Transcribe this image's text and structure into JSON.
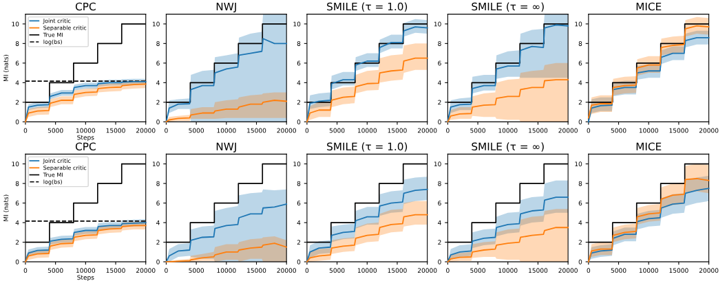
{
  "chart_data": [
    {
      "type": "line",
      "title": "CPC",
      "xlabel": "Steps",
      "ylabel": "MI (nats)",
      "legend": "top left",
      "xlim": [
        0,
        20000
      ],
      "ylim": [
        0,
        11
      ],
      "xticks": [
        0,
        5000,
        10000,
        15000,
        20000
      ],
      "yticks": [
        0,
        2,
        4,
        6,
        8,
        10
      ],
      "x": [
        0,
        500,
        2000,
        3900,
        4100,
        6000,
        7900,
        8100,
        10000,
        11900,
        12100,
        14000,
        15900,
        16100,
        18000,
        20000
      ],
      "series": [
        {
          "name": "Joint critic",
          "color": "#1f77b4",
          "values": [
            0,
            1.5,
            1.7,
            1.75,
            2.6,
            2.95,
            2.95,
            3.5,
            3.7,
            3.7,
            3.9,
            4.0,
            4.0,
            4.05,
            4.1,
            4.1
          ],
          "lower": [
            0,
            1.2,
            1.4,
            1.45,
            2.3,
            2.65,
            2.65,
            3.2,
            3.4,
            3.4,
            3.6,
            3.7,
            3.7,
            3.75,
            3.8,
            3.8
          ],
          "upper": [
            0.3,
            1.8,
            2.0,
            2.05,
            2.9,
            3.25,
            3.25,
            3.8,
            4.0,
            4.0,
            4.2,
            4.3,
            4.3,
            4.35,
            4.4,
            4.4
          ]
        },
        {
          "name": "Separable critic",
          "color": "#ff7f0e",
          "values": [
            0,
            0.9,
            1.1,
            1.15,
            1.9,
            2.2,
            2.2,
            2.8,
            3.0,
            3.05,
            3.4,
            3.5,
            3.55,
            3.7,
            3.8,
            3.85
          ],
          "lower": [
            0,
            0.5,
            0.7,
            0.75,
            1.5,
            1.8,
            1.8,
            2.4,
            2.6,
            2.65,
            3.0,
            3.1,
            3.15,
            3.3,
            3.4,
            3.45
          ],
          "upper": [
            0.4,
            1.3,
            1.5,
            1.55,
            2.3,
            2.6,
            2.6,
            3.2,
            3.4,
            3.45,
            3.8,
            3.9,
            3.95,
            4.1,
            4.2,
            4.25
          ]
        },
        {
          "name": "True MI",
          "type": "step",
          "color": "#000000",
          "x": [
            0,
            4000,
            8000,
            12000,
            16000,
            20000
          ],
          "values": [
            2,
            4,
            6,
            8,
            10,
            10
          ]
        }
      ],
      "ref_lines": [
        {
          "axis": "y",
          "value": 4.16,
          "label": "log(bs)",
          "color": "#000000",
          "line_style": "dashed"
        }
      ]
    },
    {
      "type": "line",
      "title": "NWJ",
      "xlim": [
        0,
        20000
      ],
      "ylim": [
        0,
        11
      ],
      "xticks": [
        0,
        5000,
        10000,
        15000,
        20000
      ],
      "yticks": [
        0,
        2,
        4,
        6,
        8,
        10
      ],
      "x": [
        0,
        500,
        2000,
        3900,
        4100,
        6000,
        7900,
        8100,
        10000,
        11900,
        12100,
        14000,
        15900,
        16100,
        18000,
        20000
      ],
      "series": [
        {
          "color": "#1f77b4",
          "values": [
            0,
            1.4,
            1.8,
            1.85,
            3.3,
            3.7,
            3.7,
            5.0,
            5.4,
            5.6,
            6.8,
            7.0,
            7.2,
            8.5,
            8.0,
            8.0
          ],
          "lower": [
            0,
            0.9,
            1.3,
            1.3,
            0,
            0,
            0,
            0,
            0,
            0,
            0,
            0,
            0,
            0,
            0,
            0
          ],
          "upper": [
            0,
            2.2,
            2.3,
            2.4,
            4.8,
            5.2,
            5.3,
            6.6,
            6.8,
            7.0,
            8.6,
            9.0,
            9.2,
            11,
            11,
            11
          ]
        },
        {
          "color": "#ff7f0e",
          "values": [
            0,
            0.2,
            0.35,
            0.4,
            0.7,
            0.9,
            0.9,
            1.1,
            1.3,
            1.3,
            1.5,
            1.8,
            1.8,
            2.0,
            2.2,
            2.1
          ],
          "lower": [
            0,
            0,
            0.1,
            0.1,
            0.3,
            0.3,
            0.3,
            0.3,
            0.4,
            0.4,
            0.4,
            0.4,
            0.4,
            0.4,
            0.4,
            0.4
          ],
          "upper": [
            0,
            0.5,
            0.6,
            0.7,
            1.3,
            1.5,
            1.5,
            2.0,
            2.2,
            2.3,
            2.5,
            2.7,
            2.8,
            2.9,
            3.0,
            3.0
          ]
        },
        {
          "type": "step",
          "color": "#000000",
          "x": [
            0,
            4000,
            8000,
            12000,
            16000,
            20000
          ],
          "values": [
            2,
            4,
            6,
            8,
            10,
            10
          ]
        }
      ]
    },
    {
      "type": "line",
      "title": "SMILE (τ = 1.0)",
      "xlim": [
        0,
        20000
      ],
      "ylim": [
        0,
        11
      ],
      "xticks": [
        0,
        5000,
        10000,
        15000,
        20000
      ],
      "yticks": [
        0,
        2,
        4,
        6,
        8,
        10
      ],
      "x": [
        0,
        500,
        2000,
        3900,
        4100,
        6000,
        7900,
        8100,
        10000,
        11900,
        12100,
        14000,
        15900,
        16100,
        18000,
        20000
      ],
      "series": [
        {
          "color": "#1f77b4",
          "values": [
            0,
            1.9,
            2.1,
            2.2,
            3.9,
            4.3,
            4.3,
            5.8,
            6.2,
            6.2,
            7.6,
            8.1,
            8.1,
            9.3,
            9.7,
            9.6
          ],
          "lower": [
            0,
            1.3,
            1.5,
            1.6,
            3.3,
            3.7,
            3.7,
            5.2,
            5.6,
            5.6,
            7.0,
            7.5,
            7.5,
            8.7,
            9.1,
            9.0
          ],
          "upper": [
            0,
            2.7,
            2.9,
            3.0,
            4.7,
            5.1,
            5.1,
            6.6,
            7.0,
            7.0,
            8.4,
            8.9,
            8.9,
            10.1,
            10.5,
            10.4
          ]
        },
        {
          "color": "#ff7f0e",
          "values": [
            0,
            0.9,
            1.2,
            1.2,
            2.2,
            2.5,
            2.6,
            3.6,
            3.9,
            3.95,
            5.0,
            5.2,
            5.3,
            6.2,
            6.5,
            6.5
          ],
          "lower": [
            0,
            0.2,
            0.5,
            0.5,
            1.5,
            1.8,
            1.9,
            2.9,
            3.2,
            3.25,
            4.0,
            4.2,
            4.3,
            5.0,
            5.3,
            5.3
          ],
          "upper": [
            0,
            1.6,
            2.0,
            2.0,
            3.2,
            3.5,
            3.6,
            4.8,
            5.2,
            5.3,
            6.5,
            6.8,
            6.9,
            7.8,
            8.0,
            8.0
          ]
        },
        {
          "type": "step",
          "color": "#000000",
          "x": [
            0,
            4000,
            8000,
            12000,
            16000,
            20000
          ],
          "values": [
            2,
            4,
            6,
            8,
            10,
            10
          ]
        }
      ]
    },
    {
      "type": "line",
      "title": "SMILE (τ = ∞)",
      "xlim": [
        0,
        20000
      ],
      "ylim": [
        0,
        11
      ],
      "xticks": [
        0,
        5000,
        10000,
        15000,
        20000
      ],
      "yticks": [
        0,
        2,
        4,
        6,
        8,
        10
      ],
      "x": [
        0,
        500,
        2000,
        3900,
        4100,
        6000,
        7900,
        8100,
        10000,
        11900,
        12100,
        14000,
        15900,
        16100,
        18000,
        20000
      ],
      "series": [
        {
          "color": "#1f77b4",
          "values": [
            0,
            1.5,
            1.75,
            1.8,
            3.4,
            3.7,
            3.7,
            5.4,
            5.7,
            5.7,
            7.3,
            7.7,
            7.6,
            9.6,
            9.9,
            9.8
          ],
          "lower": [
            0,
            0.9,
            1.2,
            1.2,
            2.9,
            3.2,
            3.2,
            4.4,
            4.6,
            4.6,
            4.5,
            4.5,
            4.5,
            4.5,
            4.5,
            4.5
          ],
          "upper": [
            0,
            2.2,
            2.4,
            2.5,
            4.6,
            4.8,
            4.8,
            6.8,
            7.2,
            7.3,
            9.0,
            9.4,
            9.5,
            11,
            11,
            11
          ]
        },
        {
          "color": "#ff7f0e",
          "values": [
            0,
            0.6,
            0.8,
            0.85,
            1.5,
            1.7,
            1.75,
            2.4,
            2.6,
            2.6,
            3.3,
            3.5,
            3.5,
            4.2,
            4.3,
            4.3
          ],
          "lower": [
            0,
            0.2,
            0.3,
            0.3,
            0.6,
            0.5,
            0.5,
            0.3,
            0.2,
            0.2,
            0,
            0,
            0,
            0,
            0,
            0
          ],
          "upper": [
            0,
            1.2,
            1.5,
            1.5,
            2.6,
            2.9,
            3.0,
            4.0,
            4.3,
            4.4,
            5.0,
            5.2,
            5.3,
            5.8,
            6.0,
            6.0
          ]
        },
        {
          "type": "step",
          "color": "#000000",
          "x": [
            0,
            4000,
            8000,
            12000,
            16000,
            20000
          ],
          "values": [
            2,
            4,
            6,
            8,
            10,
            10
          ]
        }
      ]
    },
    {
      "type": "line",
      "title": "MICE",
      "xlim": [
        0,
        20000
      ],
      "ylim": [
        0,
        11
      ],
      "xticks": [
        0,
        5000,
        10000,
        15000,
        20000
      ],
      "yticks": [
        0,
        2,
        4,
        6,
        8,
        10
      ],
      "x": [
        0,
        500,
        2000,
        3900,
        4100,
        6000,
        7900,
        8100,
        10000,
        11900,
        12100,
        14000,
        15900,
        16100,
        18000,
        20000
      ],
      "series": [
        {
          "color": "#1f77b4",
          "values": [
            0,
            1.4,
            1.65,
            1.7,
            3.3,
            3.5,
            3.5,
            5.0,
            5.2,
            5.2,
            6.6,
            7.0,
            7.0,
            8.3,
            8.6,
            8.6
          ],
          "lower": [
            0,
            0.9,
            1.1,
            1.1,
            2.6,
            2.8,
            2.8,
            4.3,
            4.5,
            4.5,
            5.9,
            6.3,
            6.3,
            7.6,
            7.9,
            7.9
          ],
          "upper": [
            0,
            2.3,
            2.5,
            2.5,
            4.0,
            4.2,
            4.2,
            5.7,
            5.9,
            5.9,
            7.3,
            7.7,
            7.7,
            9.0,
            9.3,
            9.3
          ]
        },
        {
          "color": "#ff7f0e",
          "values": [
            0.4,
            1.7,
            1.85,
            1.85,
            3.5,
            3.7,
            3.75,
            5.5,
            5.8,
            5.8,
            7.6,
            7.8,
            7.9,
            9.5,
            9.8,
            9.7
          ],
          "lower": [
            0,
            0.8,
            1.0,
            1.0,
            2.7,
            2.9,
            2.95,
            4.7,
            5.0,
            5.0,
            6.8,
            7.0,
            7.1,
            8.7,
            9.0,
            8.9
          ],
          "upper": [
            0,
            2.5,
            2.7,
            2.7,
            4.4,
            4.6,
            4.65,
            6.4,
            6.7,
            6.7,
            8.5,
            8.7,
            8.8,
            10.4,
            10.7,
            10.6
          ]
        },
        {
          "type": "step",
          "color": "#000000",
          "x": [
            0,
            4000,
            8000,
            12000,
            16000,
            20000
          ],
          "values": [
            2,
            4,
            6,
            8,
            10,
            10
          ]
        }
      ]
    },
    {
      "type": "line",
      "title": "CPC",
      "xlabel": "Steps",
      "ylabel": "MI (nats)",
      "legend": "top left",
      "xlim": [
        0,
        20000
      ],
      "ylim": [
        0,
        11
      ],
      "xticks": [
        0,
        5000,
        10000,
        15000,
        20000
      ],
      "yticks": [
        0,
        2,
        4,
        6,
        8,
        10
      ],
      "x": [
        0,
        500,
        2000,
        3900,
        4100,
        6000,
        7900,
        8100,
        10000,
        11900,
        12100,
        14000,
        15900,
        16100,
        18000,
        20000
      ],
      "series": [
        {
          "name": "Joint critic",
          "color": "#1f77b4",
          "values": [
            0,
            0.9,
            1.15,
            1.2,
            2.1,
            2.3,
            2.35,
            3.0,
            3.2,
            3.2,
            3.6,
            3.7,
            3.7,
            3.9,
            3.95,
            4.0
          ],
          "lower": [
            0,
            0.55,
            0.8,
            0.85,
            1.75,
            1.95,
            2.0,
            2.65,
            2.85,
            2.85,
            3.25,
            3.35,
            3.35,
            3.55,
            3.6,
            3.65
          ],
          "upper": [
            0.35,
            1.25,
            1.5,
            1.55,
            2.45,
            2.65,
            2.7,
            3.35,
            3.55,
            3.55,
            3.95,
            4.05,
            4.05,
            4.25,
            4.3,
            4.35
          ]
        },
        {
          "name": "Separable critic",
          "color": "#ff7f0e",
          "values": [
            0,
            0.6,
            0.8,
            0.85,
            1.6,
            1.85,
            1.9,
            2.5,
            2.7,
            2.75,
            3.2,
            3.35,
            3.4,
            3.6,
            3.7,
            3.7
          ],
          "lower": [
            0,
            0.2,
            0.4,
            0.45,
            1.2,
            1.45,
            1.5,
            2.1,
            2.3,
            2.35,
            2.8,
            2.95,
            3.0,
            3.2,
            3.3,
            3.3
          ],
          "upper": [
            0.4,
            1.0,
            1.2,
            1.25,
            2.0,
            2.25,
            2.3,
            2.9,
            3.1,
            3.15,
            3.6,
            3.75,
            3.8,
            4.0,
            4.1,
            4.1
          ]
        },
        {
          "name": "True MI",
          "type": "step",
          "color": "#000000",
          "x": [
            0,
            4000,
            8000,
            12000,
            16000,
            20000
          ],
          "values": [
            2,
            4,
            6,
            8,
            10,
            10
          ]
        }
      ],
      "ref_lines": [
        {
          "axis": "y",
          "value": 4.16,
          "label": "log(bs)",
          "color": "#000000",
          "line_style": "dashed"
        }
      ]
    },
    {
      "type": "line",
      "title": "NWJ",
      "xlim": [
        0,
        20000
      ],
      "ylim": [
        0,
        11
      ],
      "xticks": [
        0,
        5000,
        10000,
        15000,
        20000
      ],
      "yticks": [
        0,
        2,
        4,
        6,
        8,
        10
      ],
      "x": [
        0,
        500,
        2000,
        3900,
        4100,
        6000,
        7900,
        8100,
        10000,
        11900,
        12100,
        14000,
        15900,
        16100,
        18000,
        20000
      ],
      "series": [
        {
          "color": "#1f77b4",
          "values": [
            0,
            0.6,
            1.1,
            1.2,
            2.2,
            2.5,
            2.55,
            3.4,
            3.7,
            3.8,
            4.5,
            4.9,
            4.9,
            5.5,
            5.6,
            5.9
          ],
          "lower": [
            0,
            0,
            0.5,
            0.6,
            0.5,
            0.3,
            0.3,
            0,
            0,
            0,
            0,
            0,
            0,
            0,
            0,
            0
          ],
          "upper": [
            0,
            1.3,
            1.8,
            1.9,
            3.3,
            3.6,
            3.7,
            5.2,
            5.5,
            5.7,
            6.8,
            7.0,
            7.1,
            7.4,
            7.3,
            7.4
          ]
        },
        {
          "color": "#ff7f0e",
          "values": [
            0,
            0,
            0.05,
            0.1,
            0.2,
            0.4,
            0.5,
            0.7,
            1.0,
            1.0,
            1.2,
            1.4,
            1.5,
            1.7,
            1.9,
            1.5
          ],
          "lower": [
            0,
            0,
            0,
            0,
            0,
            0.1,
            0.1,
            0,
            0.2,
            0.2,
            0,
            0.3,
            0.3,
            0,
            0,
            0
          ],
          "upper": [
            0,
            0.1,
            0.2,
            0.3,
            0.6,
            0.8,
            1.0,
            1.5,
            1.8,
            1.8,
            2.0,
            2.3,
            2.4,
            2.5,
            2.6,
            2.2
          ]
        },
        {
          "type": "step",
          "color": "#000000",
          "x": [
            0,
            4000,
            8000,
            12000,
            16000,
            20000
          ],
          "values": [
            2,
            4,
            6,
            8,
            10,
            10
          ]
        }
      ]
    },
    {
      "type": "line",
      "title": "SMILE (τ = 1.0)",
      "xlim": [
        0,
        20000
      ],
      "ylim": [
        0,
        11
      ],
      "xticks": [
        0,
        5000,
        10000,
        15000,
        20000
      ],
      "yticks": [
        0,
        2,
        4,
        6,
        8,
        10
      ],
      "x": [
        0,
        500,
        2000,
        3900,
        4100,
        6000,
        7900,
        8100,
        10000,
        11900,
        12100,
        14000,
        15900,
        16100,
        18000,
        20000
      ],
      "series": [
        {
          "color": "#1f77b4",
          "values": [
            0,
            1.0,
            1.4,
            1.5,
            2.7,
            3.0,
            3.1,
            4.2,
            4.6,
            4.6,
            5.7,
            6.0,
            6.1,
            7.0,
            7.3,
            7.4
          ],
          "lower": [
            0,
            0.4,
            0.8,
            0.9,
            2.0,
            2.3,
            2.4,
            3.4,
            3.8,
            3.8,
            4.7,
            5.0,
            5.1,
            5.9,
            6.2,
            6.3
          ],
          "upper": [
            0,
            1.7,
            2.1,
            2.2,
            3.6,
            3.8,
            3.9,
            5.2,
            5.6,
            5.6,
            6.9,
            7.2,
            7.3,
            8.4,
            8.6,
            8.7
          ]
        },
        {
          "color": "#ff7f0e",
          "values": [
            0,
            0.4,
            0.6,
            0.7,
            1.4,
            1.6,
            1.7,
            2.4,
            2.7,
            2.8,
            3.5,
            3.8,
            3.9,
            4.6,
            4.8,
            4.8
          ],
          "lower": [
            0,
            0,
            0.1,
            0.2,
            0.8,
            1.0,
            1.1,
            1.7,
            2.0,
            2.1,
            2.7,
            3.0,
            3.1,
            3.6,
            3.8,
            3.8
          ],
          "upper": [
            0,
            1.0,
            1.3,
            1.4,
            2.2,
            2.4,
            2.5,
            3.5,
            3.9,
            4.0,
            4.9,
            5.3,
            5.4,
            6.0,
            6.2,
            6.2
          ]
        },
        {
          "type": "step",
          "color": "#000000",
          "x": [
            0,
            4000,
            8000,
            12000,
            16000,
            20000
          ],
          "values": [
            2,
            4,
            6,
            8,
            10,
            10
          ]
        }
      ]
    },
    {
      "type": "line",
      "title": "SMILE (τ = ∞)",
      "xlim": [
        0,
        20000
      ],
      "ylim": [
        0,
        11
      ],
      "xticks": [
        0,
        5000,
        10000,
        15000,
        20000
      ],
      "yticks": [
        0,
        2,
        4,
        6,
        8,
        10
      ],
      "x": [
        0,
        500,
        2000,
        3900,
        4100,
        6000,
        7900,
        8100,
        10000,
        11900,
        12100,
        14000,
        15900,
        16100,
        18000,
        20000
      ],
      "series": [
        {
          "color": "#1f77b4",
          "values": [
            0,
            0.7,
            1.0,
            1.1,
            2.1,
            2.4,
            2.5,
            3.5,
            3.8,
            3.9,
            4.9,
            5.2,
            5.3,
            6.3,
            6.6,
            6.6
          ],
          "lower": [
            0,
            0.2,
            0.5,
            0.6,
            1.4,
            1.7,
            1.8,
            2.6,
            2.9,
            3.0,
            3.7,
            4.0,
            4.1,
            4.8,
            5.0,
            5.0
          ],
          "upper": [
            0,
            1.3,
            1.7,
            1.8,
            3.0,
            3.3,
            3.4,
            4.6,
            5.0,
            5.1,
            6.3,
            6.6,
            6.7,
            8.0,
            8.3,
            8.3
          ]
        },
        {
          "color": "#ff7f0e",
          "values": [
            0,
            0.3,
            0.45,
            0.5,
            1.0,
            1.2,
            1.3,
            1.7,
            1.9,
            2.0,
            2.5,
            2.7,
            2.8,
            3.2,
            3.5,
            3.5
          ],
          "lower": [
            0,
            0,
            0.1,
            0.1,
            0.4,
            0.5,
            0.5,
            0.3,
            0.2,
            0.2,
            0,
            0,
            0,
            0,
            0,
            0
          ],
          "upper": [
            0,
            0.7,
            0.9,
            1.0,
            1.8,
            2.0,
            2.1,
            3.0,
            3.3,
            3.4,
            4.3,
            4.6,
            4.7,
            5.2,
            5.4,
            5.4
          ]
        },
        {
          "type": "step",
          "color": "#000000",
          "x": [
            0,
            4000,
            8000,
            12000,
            16000,
            20000
          ],
          "values": [
            2,
            4,
            6,
            8,
            10,
            10
          ]
        }
      ]
    },
    {
      "type": "line",
      "title": "MICE",
      "xlim": [
        0,
        20000
      ],
      "ylim": [
        0,
        11
      ],
      "xticks": [
        0,
        5000,
        10000,
        15000,
        20000
      ],
      "yticks": [
        0,
        2,
        4,
        6,
        8,
        10
      ],
      "x": [
        0,
        500,
        2000,
        3900,
        4100,
        6000,
        7900,
        8100,
        10000,
        11900,
        12100,
        14000,
        15900,
        16100,
        18000,
        20000
      ],
      "series": [
        {
          "color": "#1f77b4",
          "values": [
            0,
            0.9,
            1.1,
            1.2,
            2.4,
            2.8,
            2.8,
            4.1,
            4.4,
            4.5,
            5.5,
            5.9,
            6.0,
            7.0,
            7.3,
            7.5
          ],
          "lower": [
            0,
            0.3,
            0.5,
            0.6,
            1.7,
            2.1,
            2.1,
            3.3,
            3.6,
            3.7,
            4.5,
            4.9,
            5.0,
            5.7,
            6.0,
            6.2
          ],
          "upper": [
            0,
            1.5,
            1.7,
            1.8,
            3.1,
            3.5,
            3.5,
            4.9,
            5.2,
            5.3,
            6.5,
            6.9,
            7.0,
            8.3,
            8.6,
            8.8
          ]
        },
        {
          "color": "#ff7f0e",
          "values": [
            0,
            1.1,
            1.3,
            1.3,
            2.7,
            3.0,
            3.1,
            4.6,
            4.9,
            5.0,
            6.4,
            6.8,
            6.9,
            8.4,
            8.5,
            8.3
          ],
          "lower": [
            0,
            0.5,
            0.7,
            0.7,
            2.0,
            2.3,
            2.4,
            3.8,
            4.1,
            4.2,
            5.4,
            5.8,
            5.9,
            7.1,
            7.2,
            7.0
          ],
          "upper": [
            0,
            1.8,
            2.0,
            2.0,
            3.5,
            3.8,
            3.9,
            5.5,
            5.8,
            5.9,
            7.6,
            8.0,
            8.1,
            9.8,
            10.0,
            9.9
          ]
        },
        {
          "type": "step",
          "color": "#000000",
          "x": [
            0,
            4000,
            8000,
            12000,
            16000,
            20000
          ],
          "values": [
            2,
            4,
            6,
            8,
            10,
            10
          ]
        }
      ]
    }
  ]
}
